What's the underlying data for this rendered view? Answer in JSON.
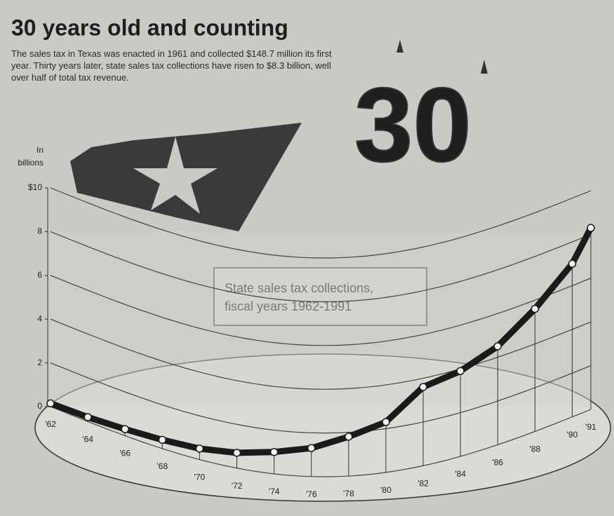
{
  "chart_data": {
    "type": "line",
    "title": "30 years old and counting",
    "subtitle": "The sales tax in Texas was enacted in 1961 and collected $148.7 million its first year. Thirty years later, state sales tax collections have risen to $8.3 billion, well over half of total tax revenue.",
    "y_label": "In billions",
    "annotation": [
      "State sales tax collections,",
      "fiscal years 1962-1991"
    ],
    "x": [
      1962,
      1964,
      1966,
      1968,
      1970,
      1972,
      1974,
      1976,
      1978,
      1980,
      1982,
      1984,
      1986,
      1988,
      1990,
      1991
    ],
    "xlim": [
      1962,
      1991
    ],
    "xticks": [
      {
        "value": 1962,
        "label": "'62"
      },
      {
        "value": 1964,
        "label": "'64"
      },
      {
        "value": 1966,
        "label": "'66"
      },
      {
        "value": 1968,
        "label": "'68"
      },
      {
        "value": 1970,
        "label": "'70"
      },
      {
        "value": 1972,
        "label": "'72"
      },
      {
        "value": 1974,
        "label": "'74"
      },
      {
        "value": 1976,
        "label": "'76"
      },
      {
        "value": 1978,
        "label": "'78"
      },
      {
        "value": 1980,
        "label": "'80"
      },
      {
        "value": 1982,
        "label": "'82"
      },
      {
        "value": 1984,
        "label": "'84"
      },
      {
        "value": 1986,
        "label": "'86"
      },
      {
        "value": 1988,
        "label": "'88"
      },
      {
        "value": 1990,
        "label": "'90"
      },
      {
        "value": 1991,
        "label": "'91"
      }
    ],
    "ylim": [
      0,
      10
    ],
    "yticks": [
      0,
      2,
      4,
      6,
      8,
      {
        "value": 10,
        "label": "$10"
      }
    ],
    "grid": true,
    "color": "#1a1a1a",
    "values": [
      0.15,
      0.2,
      0.3,
      0.4,
      0.5,
      0.7,
      1.0,
      1.3,
      1.8,
      2.3,
      3.6,
      3.9,
      4.5,
      5.6,
      7.0,
      8.3
    ]
  }
}
